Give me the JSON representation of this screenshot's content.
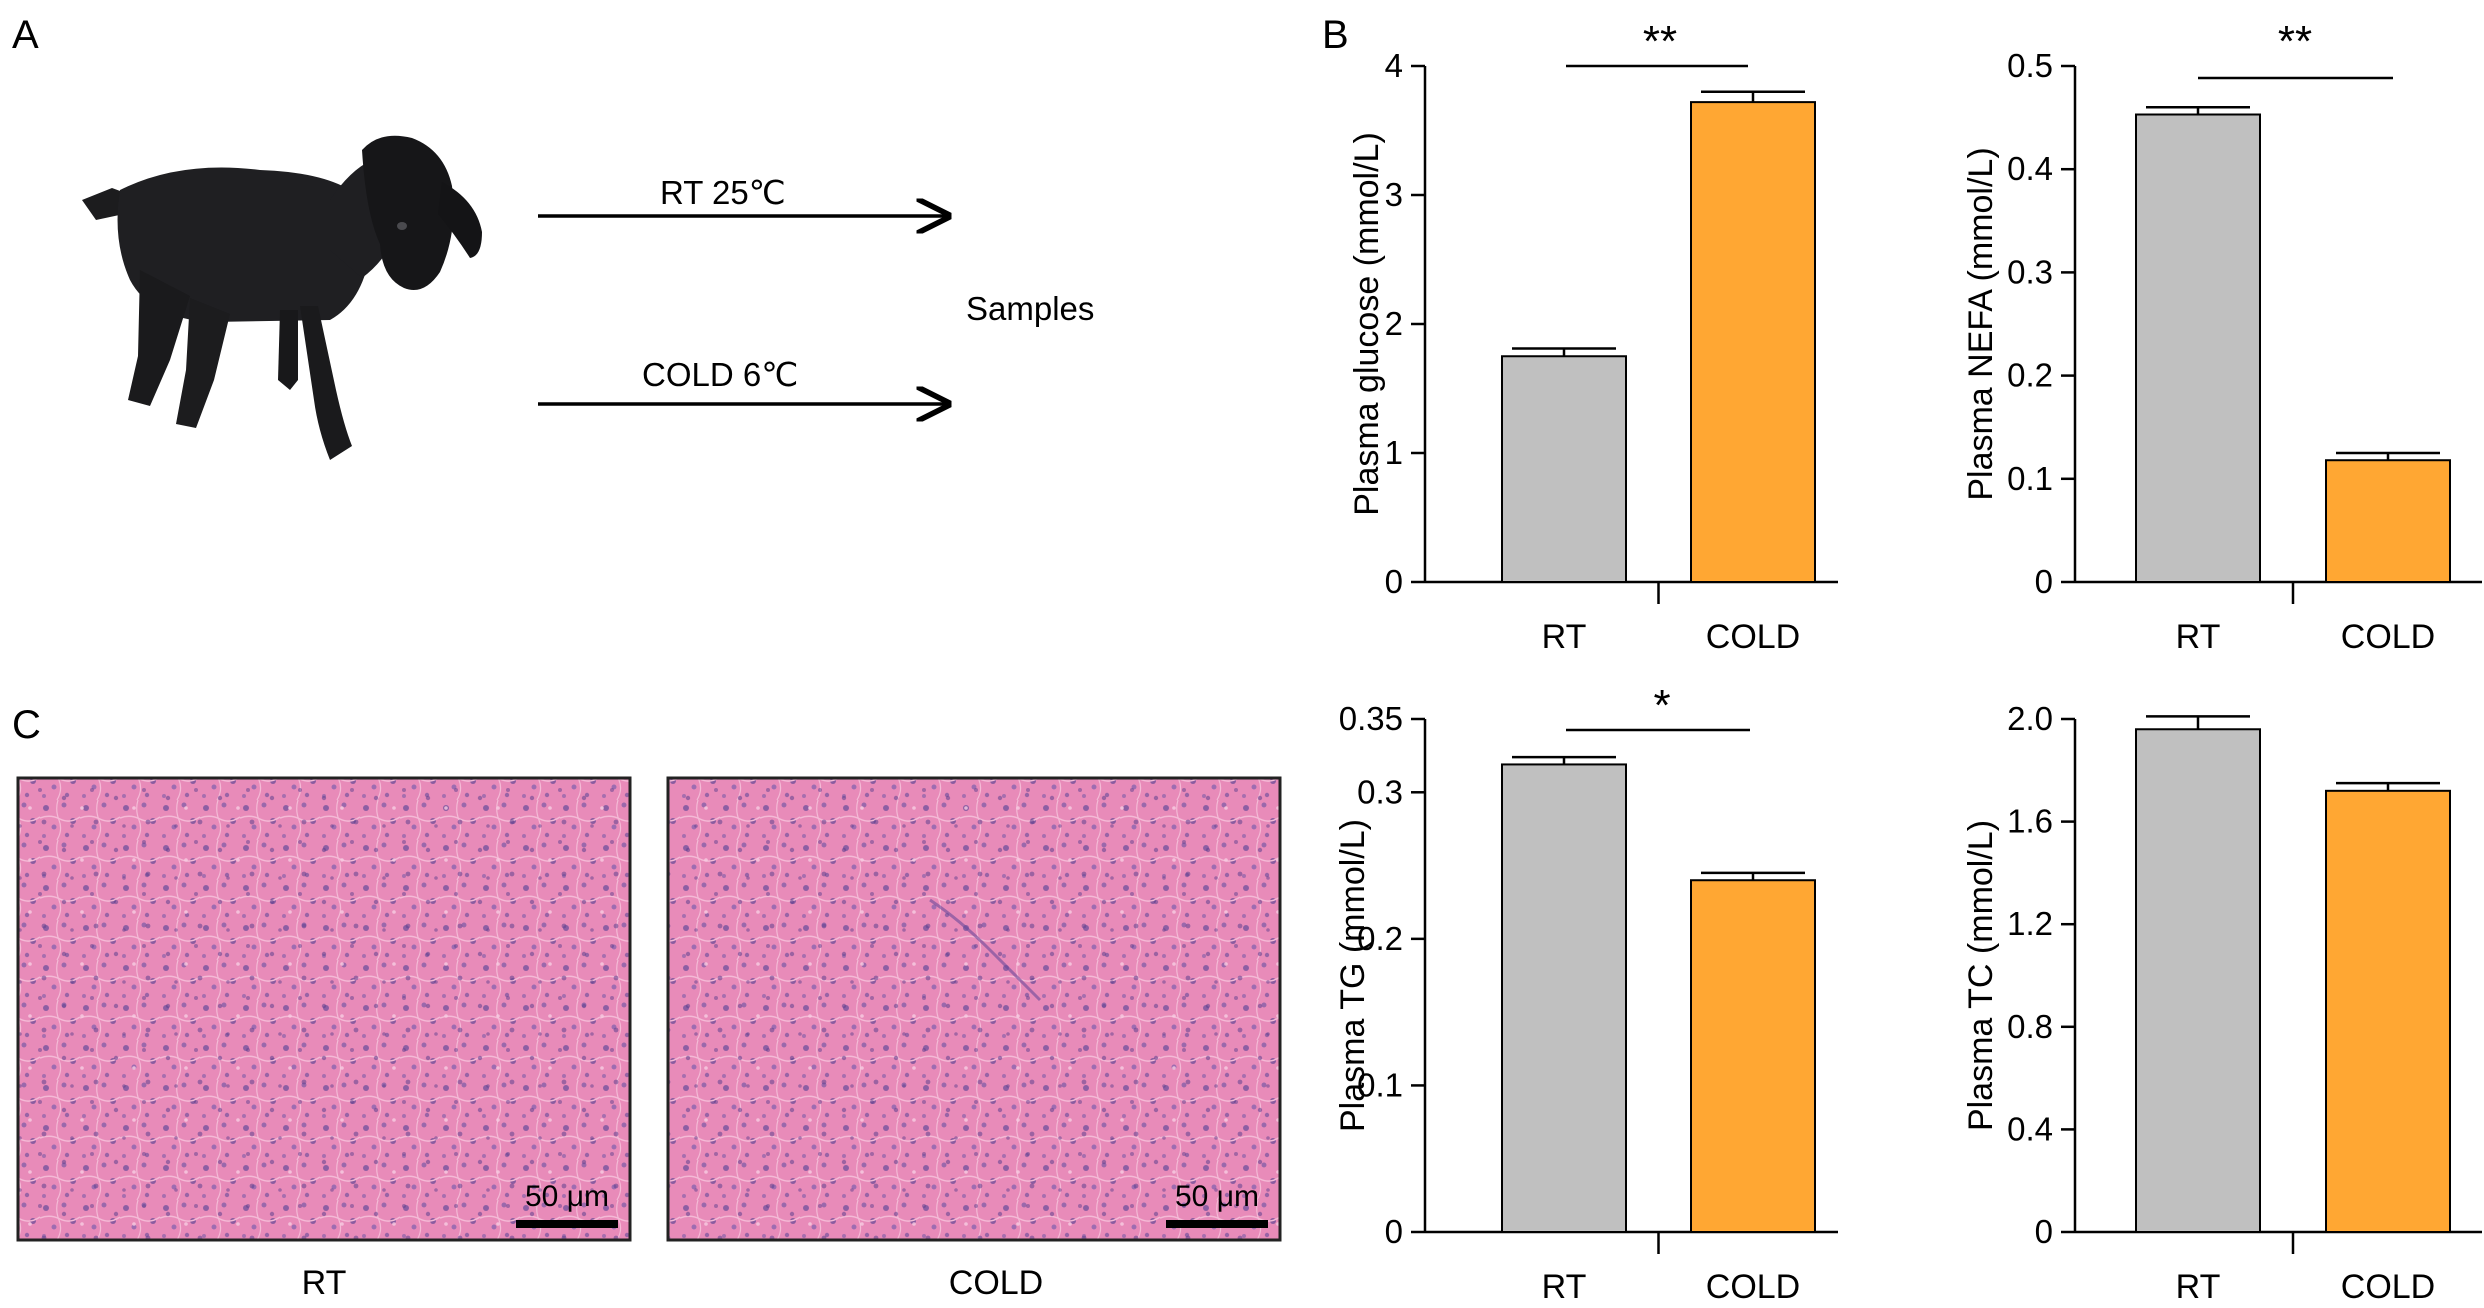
{
  "panels": {
    "a_letter": "A",
    "b_letter": "B",
    "c_letter": "C"
  },
  "experiment": {
    "condition_rt": "RT 25℃",
    "condition_cold": "COLD 6℃",
    "samples": "Samples"
  },
  "histology": {
    "rt_label": "RT",
    "cold_label": "COLD",
    "scale_bar_label": "50 μm"
  },
  "colors": {
    "rt_bar": "#c0c0c0",
    "cold_bar": "#ffa733",
    "tissue_pink": "#e97fb4",
    "tissue_nucleus": "#7a5aa8",
    "goat": "#1c1c1e"
  },
  "chart_data": [
    {
      "type": "bar",
      "id": "glucose",
      "categories": [
        "RT",
        "COLD"
      ],
      "values": [
        1.75,
        3.72
      ],
      "errors": [
        0.06,
        0.08
      ],
      "ylabel": "Plasma glucose (mmol/L)",
      "ylim": [
        0,
        4
      ],
      "yticks": [
        0,
        1,
        2,
        3,
        4
      ],
      "ytick_labels": [
        "0",
        "1",
        "2",
        "3",
        "4"
      ],
      "significance": "**"
    },
    {
      "type": "bar",
      "id": "nefa",
      "categories": [
        "RT",
        "COLD"
      ],
      "values": [
        0.453,
        0.118
      ],
      "errors": [
        0.007,
        0.007
      ],
      "ylabel": "Plasma NEFA (mmol/L)",
      "ylim": [
        0,
        0.5
      ],
      "yticks": [
        0,
        0.1,
        0.2,
        0.3,
        0.4,
        0.5
      ],
      "ytick_labels": [
        "0",
        "0.1",
        "0.2",
        "0.3",
        "0.4",
        "0.5"
      ],
      "significance": "**"
    },
    {
      "type": "bar",
      "id": "tg",
      "categories": [
        "RT",
        "COLD"
      ],
      "values": [
        0.319,
        0.24
      ],
      "errors": [
        0.005,
        0.005
      ],
      "ylabel": "Plasma TG (mmol/L)",
      "ylim": [
        0,
        0.35
      ],
      "yticks": [
        0,
        0.1,
        0.2,
        0.3,
        0.35
      ],
      "ytick_labels": [
        "0",
        "0.1",
        "0.2",
        "0.3",
        "0.35"
      ],
      "significance": "*"
    },
    {
      "type": "bar",
      "id": "tc",
      "categories": [
        "RT",
        "COLD"
      ],
      "values": [
        1.96,
        1.72
      ],
      "errors": [
        0.05,
        0.03
      ],
      "ylabel": "Plasma TC (mmol/L)",
      "ylim": [
        0,
        2.0
      ],
      "yticks": [
        0,
        0.4,
        0.8,
        1.2,
        1.6,
        2.0
      ],
      "ytick_labels": [
        "0",
        "0.4",
        "0.8",
        "1.2",
        "1.6",
        "2.0"
      ],
      "significance": ""
    }
  ]
}
